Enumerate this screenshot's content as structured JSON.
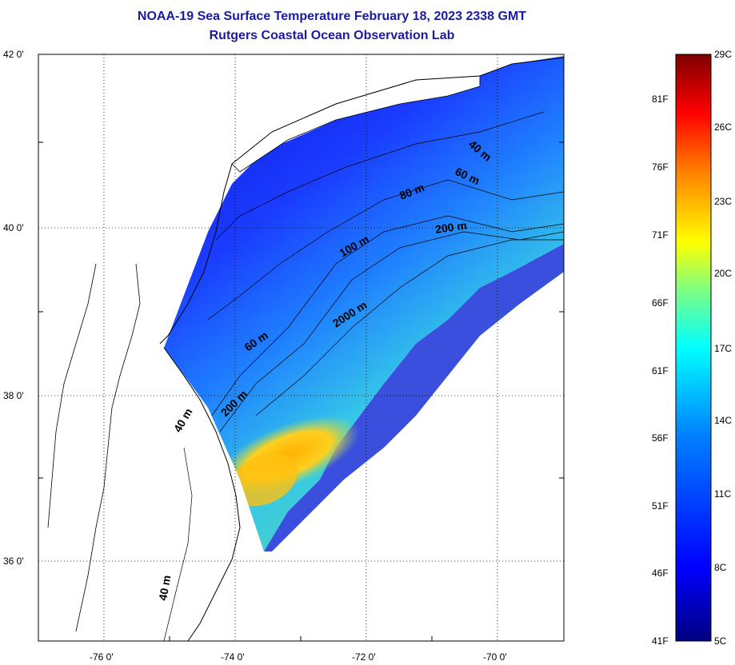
{
  "title": "NOAA-19 Sea Surface Temperature February 18, 2023 2338 GMT",
  "subtitle": "Rutgers Coastal Ocean Observation Lab",
  "map": {
    "lat_ticks": [
      "42 0'",
      "40 0'",
      "38 0'",
      "36 0'"
    ],
    "lon_ticks": [
      "-76 0'",
      "-74 0'",
      "-72 0'",
      "-70 0'"
    ],
    "depth_labels": [
      "40 m",
      "60 m",
      "80 m",
      "100 m",
      "200 m",
      "2000 m",
      "60 m",
      "200 m",
      "40 m",
      "40 m"
    ],
    "colors": {
      "land_bg": "#ffffff",
      "coastline": "#000000",
      "no_data": "#ffffff"
    }
  },
  "colorbar": {
    "fahrenheit": [
      "81F",
      "76F",
      "71F",
      "66F",
      "61F",
      "56F",
      "51F",
      "46F",
      "41F"
    ],
    "celsius": [
      "29C",
      "26C",
      "23C",
      "20C",
      "17C",
      "14C",
      "11C",
      "8C",
      "5C"
    ],
    "colors": [
      "#7f0000",
      "#ff0000",
      "#ff8000",
      "#ffff00",
      "#80ff80",
      "#00ffff",
      "#0080ff",
      "#0000ff",
      "#00007f"
    ]
  }
}
